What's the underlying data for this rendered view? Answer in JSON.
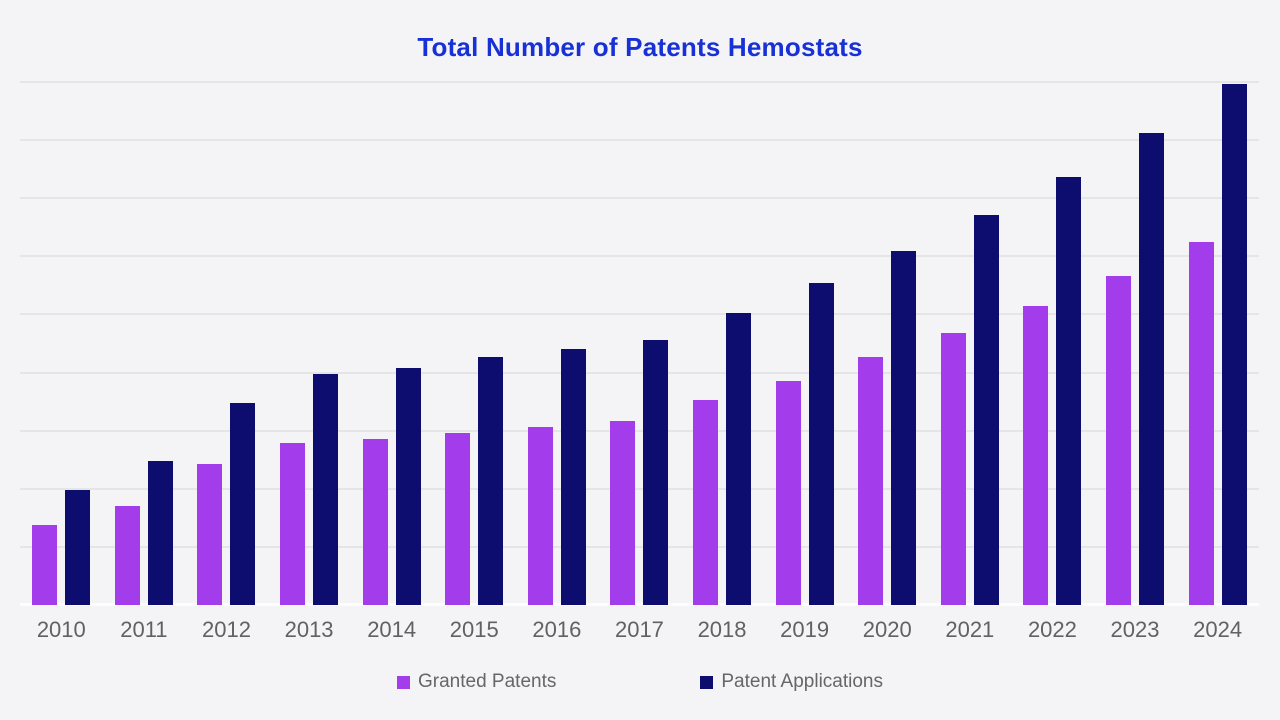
{
  "page": {
    "background_color": "#F4F4F6"
  },
  "chart": {
    "title_color": "#1731D6",
    "gridline_color": "#E5E5E7",
    "axis_label_color": "#616161",
    "legend_text_color": "#666668"
  },
  "chart_data": {
    "type": "bar",
    "title": "Total Number of Patents Hemostats",
    "categories": [
      "2010",
      "2011",
      "2012",
      "2013",
      "2014",
      "2015",
      "2016",
      "2017",
      "2018",
      "2019",
      "2020",
      "2021",
      "2022",
      "2023",
      "2024"
    ],
    "series": [
      {
        "name": "Granted Patents",
        "color": "#A33CEB",
        "values": [
          69,
          85,
          121,
          139,
          143,
          148,
          153,
          158,
          176,
          193,
          213,
          234,
          257,
          283,
          312
        ]
      },
      {
        "name": "Patent Applications",
        "color": "#0D0D70",
        "values": [
          99,
          124,
          174,
          199,
          204,
          213,
          220,
          228,
          251,
          277,
          305,
          336,
          368,
          406,
          448
        ]
      }
    ],
    "xlabel": "",
    "ylabel": "",
    "ylim": [
      0,
      450
    ],
    "gridline_interval": 50,
    "y_axis_labels_visible": false,
    "grid": true,
    "legend_position": "bottom"
  }
}
